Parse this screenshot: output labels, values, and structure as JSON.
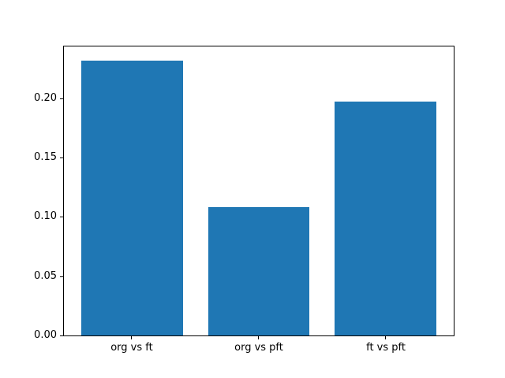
{
  "chart_data": {
    "type": "bar",
    "categories": [
      "org vs ft",
      "org vs pft",
      "ft vs pft"
    ],
    "values": [
      0.233,
      0.109,
      0.198
    ],
    "title": "",
    "xlabel": "",
    "ylabel": "",
    "ylim": [
      0,
      0.245
    ],
    "xlim": [
      -0.54,
      2.54
    ],
    "yticks": [
      0.0,
      0.05,
      0.1,
      0.15,
      0.2
    ],
    "ytick_labels": [
      "0.00",
      "0.05",
      "0.10",
      "0.15",
      "0.20"
    ],
    "bar_width": 0.8,
    "bar_color": "#1f77b4",
    "grid": false,
    "legend": null,
    "background_color": "#ffffff",
    "spine_color": "#000000",
    "tick_color": "#000000"
  }
}
